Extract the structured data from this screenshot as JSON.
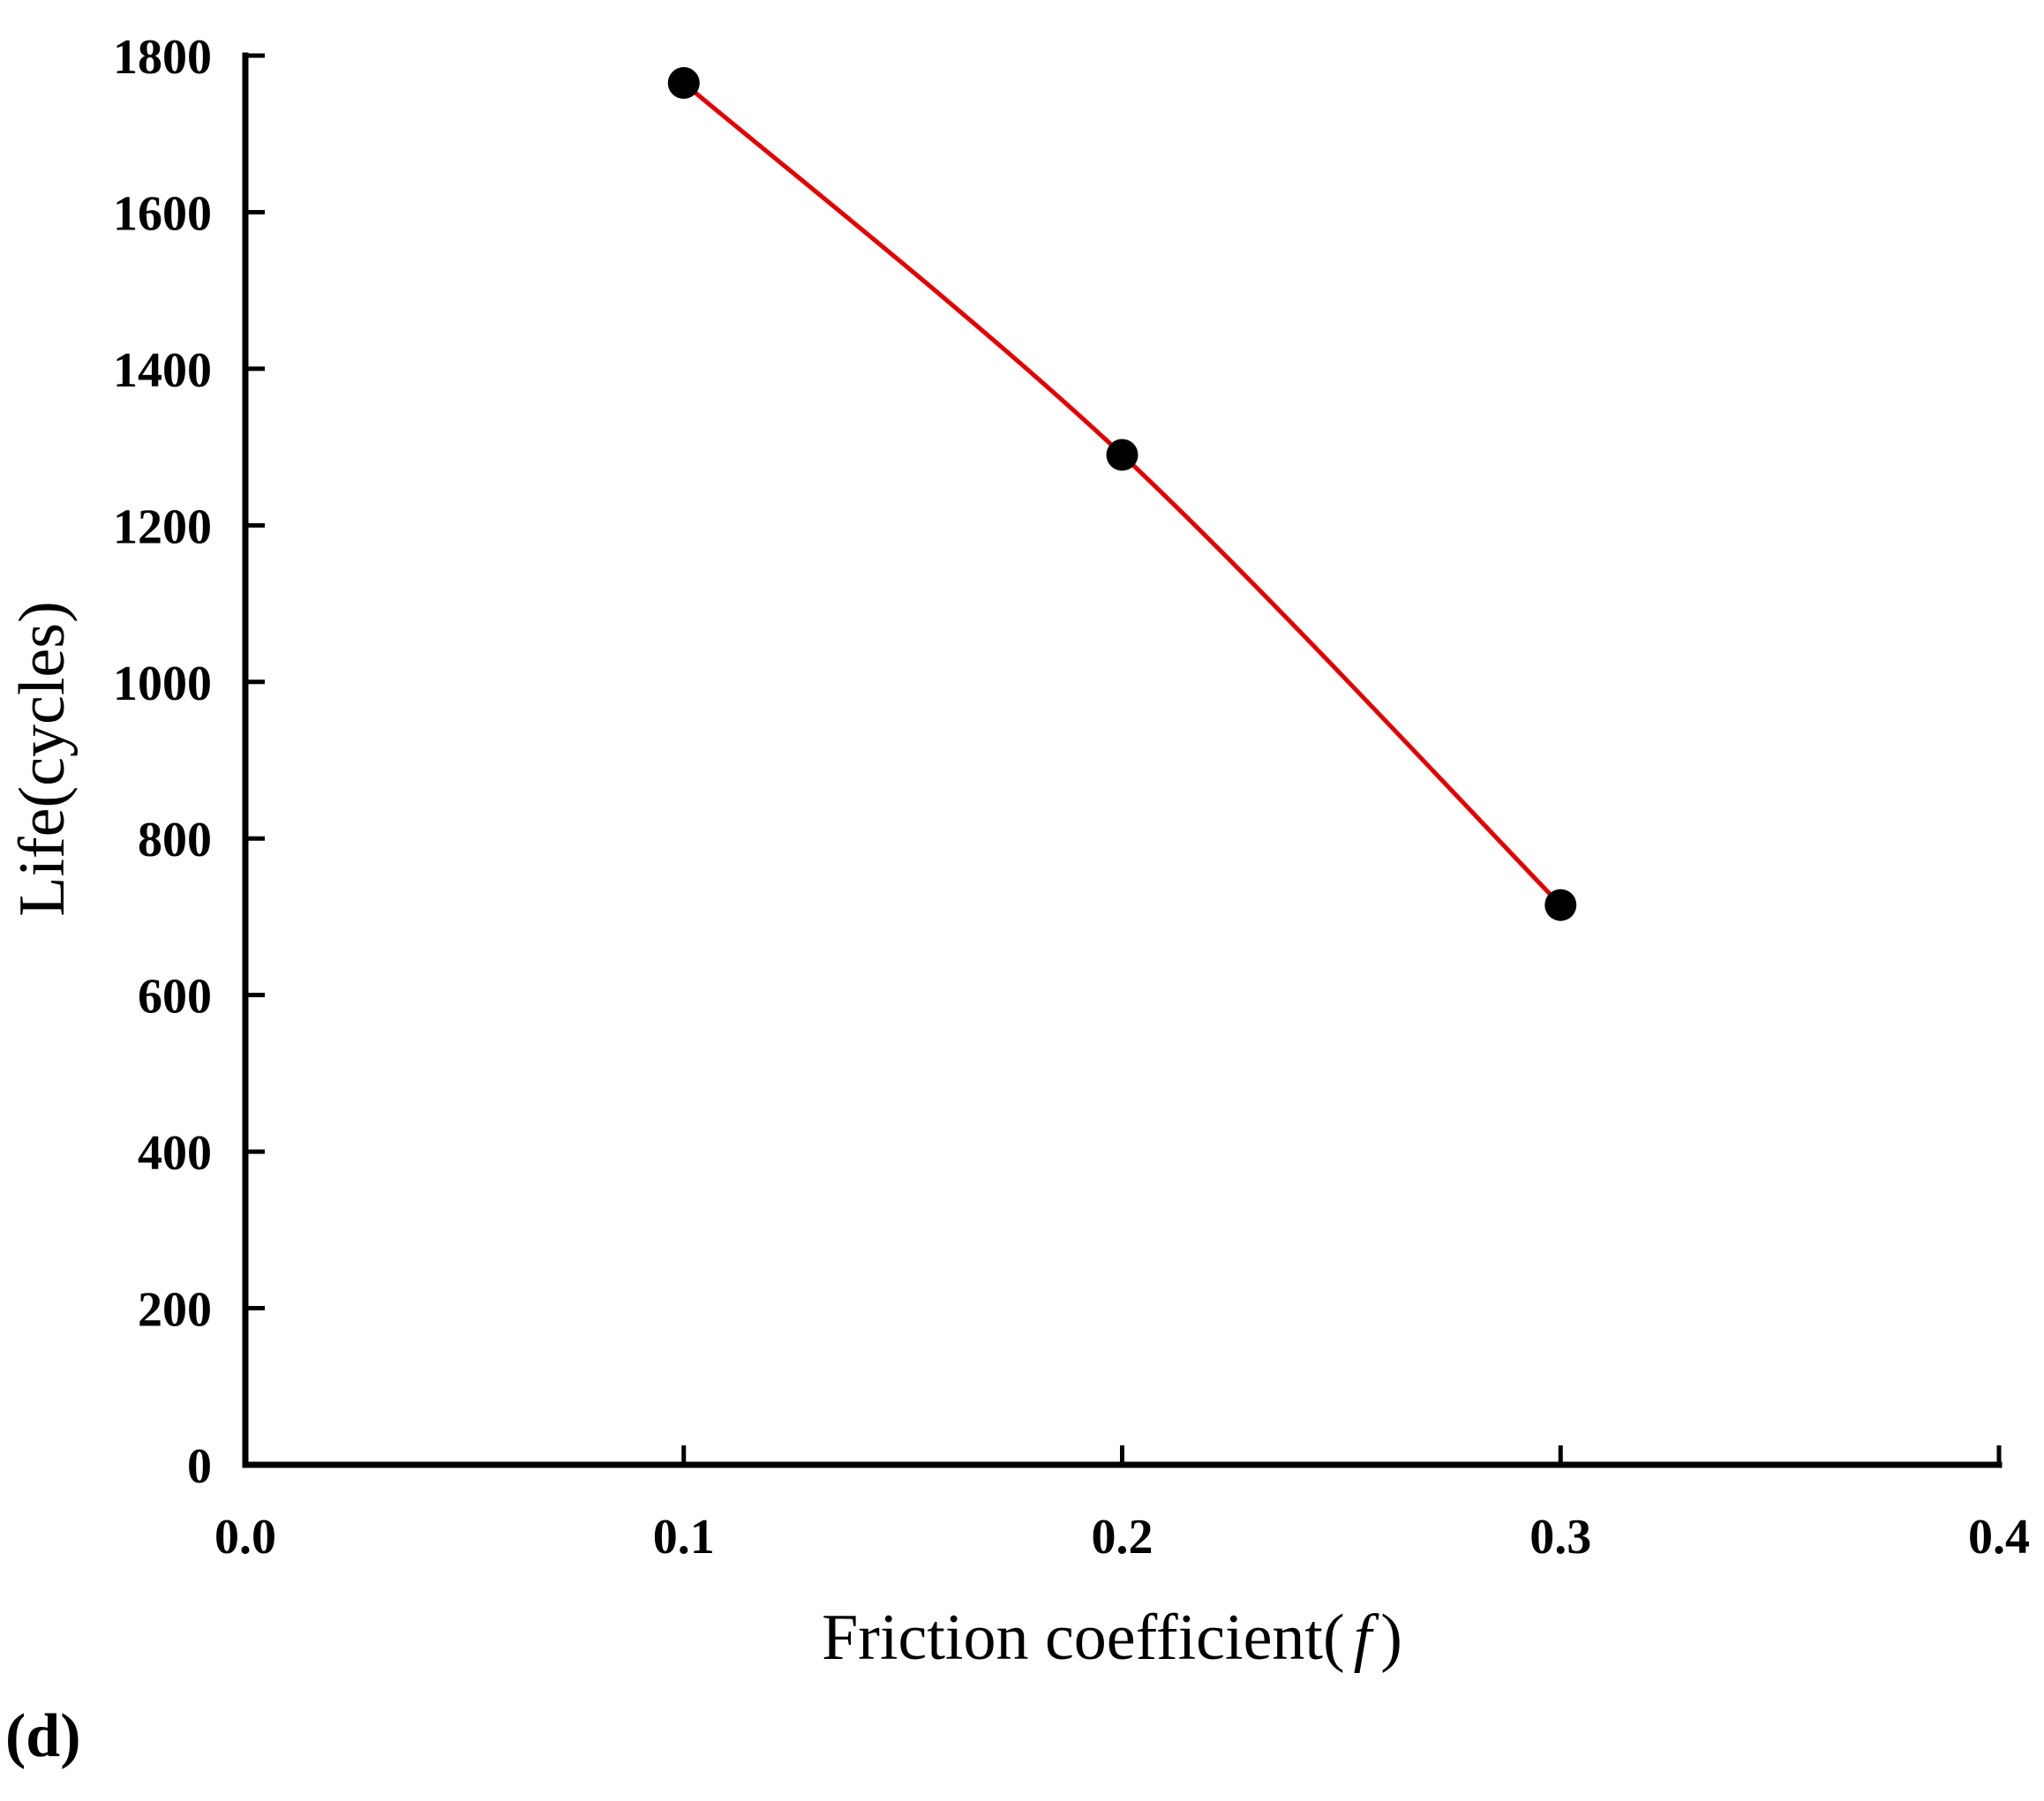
{
  "chart_data": {
    "type": "line",
    "xlabel": "Friction coefficient(",
    "xlabel_symbol": "f",
    "xlabel_close": ")",
    "ylabel": "Life(cycles)",
    "panel_label": "(d)",
    "xlim": [
      0.0,
      0.4
    ],
    "ylim": [
      0,
      1800
    ],
    "x_ticks": [
      0.0,
      0.1,
      0.2,
      0.3,
      0.4
    ],
    "x_tick_labels": [
      "0.0",
      "0.1",
      "0.2",
      "0.3",
      "0.4"
    ],
    "y_ticks": [
      0,
      200,
      400,
      600,
      800,
      1000,
      1200,
      1400,
      1600,
      1800
    ],
    "y_tick_labels": [
      "0",
      "200",
      "400",
      "600",
      "800",
      "1000",
      "1200",
      "1400",
      "1600",
      "1800"
    ],
    "grid": false,
    "series": [
      {
        "x": [
          0.1,
          0.2,
          0.3
        ],
        "y": [
          1765,
          1290,
          715
        ],
        "line_color": "#e60000",
        "marker_color": "#000000"
      }
    ]
  }
}
